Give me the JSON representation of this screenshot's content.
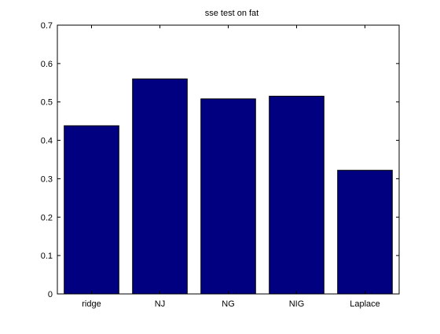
{
  "chart_data": {
    "type": "bar",
    "title": "sse test on fat",
    "xlabel": "",
    "ylabel": "",
    "categories": [
      "ridge",
      "NJ",
      "NG",
      "NIG",
      "Laplace"
    ],
    "values": [
      0.438,
      0.56,
      0.508,
      0.515,
      0.322
    ],
    "ylim": [
      0,
      0.7
    ],
    "yticks": [
      0,
      0.1,
      0.2,
      0.3,
      0.4,
      0.5,
      0.6,
      0.7
    ],
    "ytick_labels": [
      "0",
      "0.1",
      "0.2",
      "0.3",
      "0.4",
      "0.5",
      "0.6",
      "0.7"
    ],
    "grid": false,
    "legend": "none",
    "bar_color": "#000080",
    "edge_color": "#000000"
  }
}
